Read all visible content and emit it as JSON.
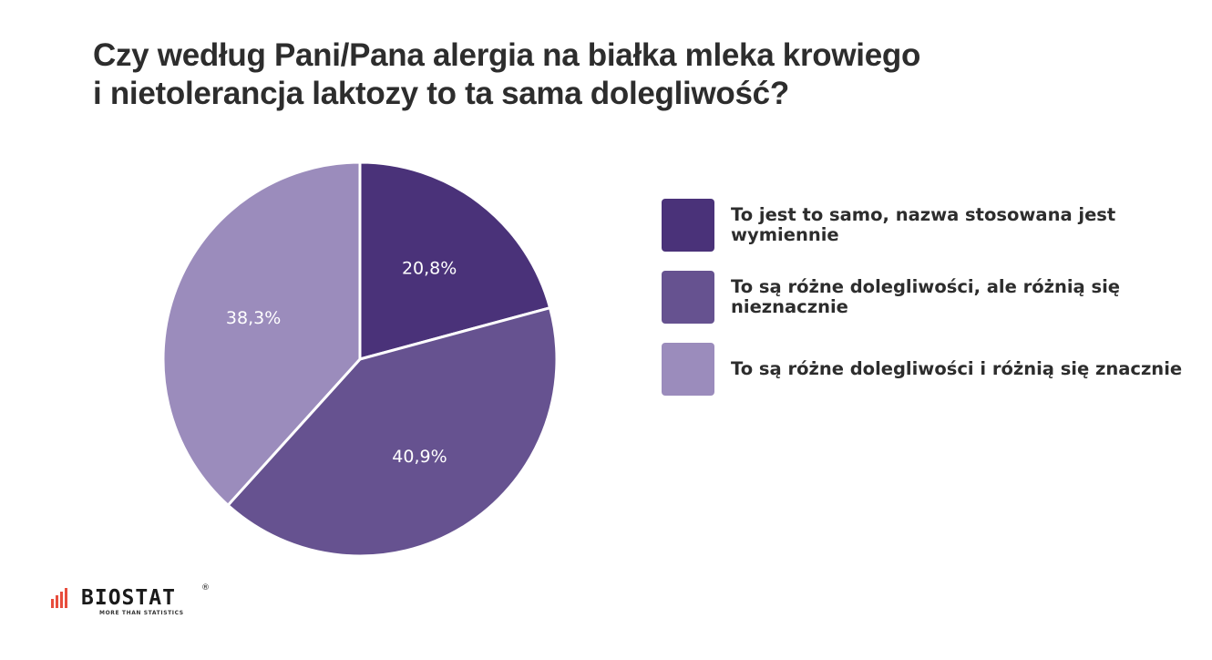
{
  "title": {
    "line1": "Czy według Pani/Pana alergia na białka mleka krowiego",
    "line2": "i nietolerancja laktozy to ta sama dolegliwość?"
  },
  "chart_data": {
    "type": "pie",
    "title": "Czy według Pani/Pana alergia na białka mleka krowiego i nietolerancja laktozy to ta sama dolegliwość?",
    "categories": [
      "To jest to samo, nazwa stosowana jest wymiennie",
      "To są różne dolegliwości, ale różnią się nieznacznie",
      "To są różne dolegliwości i różnią się znacznie"
    ],
    "values": [
      20.8,
      40.9,
      38.3
    ],
    "value_labels": [
      "20,8%",
      "40,9%",
      "38,3%"
    ],
    "colors": [
      "#4a3279",
      "#665290",
      "#9b8cbc"
    ],
    "start_angle": "12 o'clock",
    "direction": "clockwise",
    "legend_position": "right"
  },
  "legend": [
    {
      "label": "To jest to samo, nazwa stosowana jest wymiennie",
      "color": "#4a3279"
    },
    {
      "label": "To są różne dolegliwości, ale różnią się nieznacznie",
      "color": "#665290"
    },
    {
      "label": "To są różne dolegliwości i różnią się znacznie",
      "color": "#9b8cbc"
    }
  ],
  "logo": {
    "name": "BIOSTAT",
    "registered": "®",
    "tagline": "MORE THAN STATISTICS",
    "accent_color": "#e84d3d"
  }
}
